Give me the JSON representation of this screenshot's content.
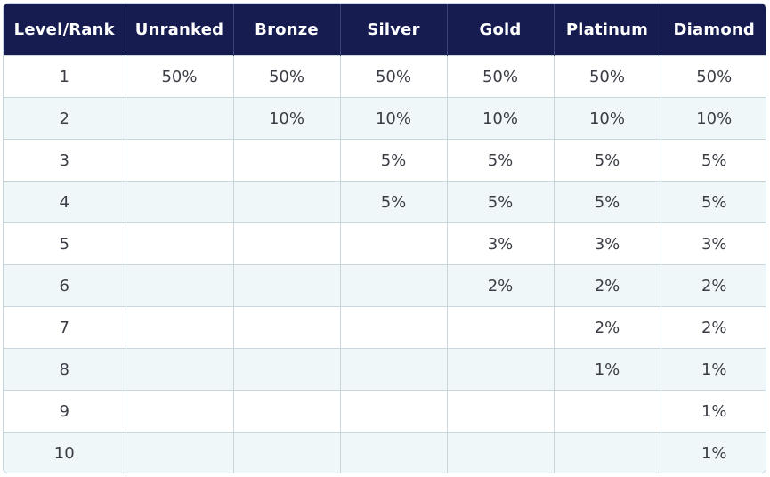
{
  "table": {
    "headers": [
      "Level/Rank",
      "Unranked",
      "Bronze",
      "Silver",
      "Gold",
      "Platinum",
      "Diamond"
    ],
    "rows": [
      [
        "1",
        "50%",
        "50%",
        "50%",
        "50%",
        "50%",
        "50%"
      ],
      [
        "2",
        "",
        "10%",
        "10%",
        "10%",
        "10%",
        "10%"
      ],
      [
        "3",
        "",
        "",
        "5%",
        "5%",
        "5%",
        "5%"
      ],
      [
        "4",
        "",
        "",
        "5%",
        "5%",
        "5%",
        "5%"
      ],
      [
        "5",
        "",
        "",
        "",
        "3%",
        "3%",
        "3%"
      ],
      [
        "6",
        "",
        "",
        "",
        "2%",
        "2%",
        "2%"
      ],
      [
        "7",
        "",
        "",
        "",
        "",
        "2%",
        "2%"
      ],
      [
        "8",
        "",
        "",
        "",
        "",
        "1%",
        "1%"
      ],
      [
        "9",
        "",
        "",
        "",
        "",
        "",
        "1%"
      ],
      [
        "10",
        "",
        "",
        "",
        "",
        "",
        "1%"
      ]
    ]
  },
  "colors": {
    "header_bg": "#161c4f",
    "header_text": "#ffffff",
    "row_alt_bg": "#eff7f9",
    "border": "#c9d6dc",
    "cell_text": "#3a3d45"
  }
}
